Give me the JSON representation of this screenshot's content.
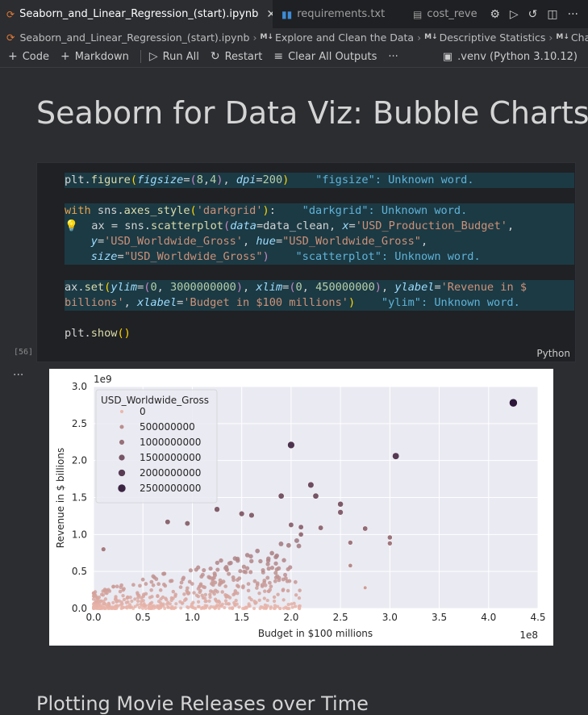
{
  "tabs": [
    {
      "label": "Seaborn_and_Linear_Regression_(start).ipynb",
      "active": true,
      "icon": "jupyter-icon"
    },
    {
      "label": "requirements.txt",
      "active": false,
      "icon": "pip-icon"
    },
    {
      "label": "cost_reve",
      "active": false,
      "icon": "file-icon"
    }
  ],
  "breadcrumb": {
    "file": "Seaborn_and_Linear_Regression_(start).ipynb",
    "items": [
      "Explore and Clean the Data",
      "Descriptive Statistics",
      "Challe"
    ],
    "md_badge": "M↓"
  },
  "toolbar": {
    "code": "Code",
    "markdown": "Markdown",
    "run_all": "Run All",
    "restart": "Restart",
    "clear": "Clear All Outputs",
    "more": "···",
    "kernel": ".venv (Python 3.10.12)"
  },
  "title": "Seaborn for Data Viz: Bubble Charts",
  "cell": {
    "exec_count": "[56]",
    "language": "Python",
    "diagnostics": {
      "figsize": "\"figsize\": Unknown word.",
      "darkgrid": "\"darkgrid\": Unknown word.",
      "scatterplot": "\"scatterplot\": Unknown word.",
      "ylim": "\"ylim\": Unknown word."
    }
  },
  "output": {
    "more": "···"
  },
  "next_heading": "Plotting Movie Releases over Time",
  "colors": {
    "accent": "#e37933",
    "plot_bg": "#eaeaf2",
    "cell_highlight": "#1c3a44"
  },
  "chart_data": {
    "type": "scatter",
    "xlabel": "Budget in $100 millions",
    "ylabel": "Revenue in $ billions",
    "x_exponent": "1e8",
    "y_exponent": "1e9",
    "xlim": [
      0,
      450000000
    ],
    "ylim": [
      0,
      3000000000
    ],
    "x_ticks": [
      "0.0",
      "0.5",
      "1.0",
      "1.5",
      "2.0",
      "2.5",
      "3.0",
      "3.5",
      "4.0",
      "4.5"
    ],
    "y_ticks": [
      "0.0",
      "0.5",
      "1.0",
      "1.5",
      "2.0",
      "2.5",
      "3.0"
    ],
    "grid": true,
    "legend_title": "USD_Worldwide_Gross",
    "legend_placement": "top-left",
    "legend_entries": [
      "0",
      "500000000",
      "1000000000",
      "1500000000",
      "2000000000",
      "2500000000"
    ],
    "highlight_points": [
      {
        "x": 425000000,
        "y": 2780000000
      },
      {
        "x": 200000000,
        "y": 2210000000
      },
      {
        "x": 306000000,
        "y": 2060000000
      },
      {
        "x": 220000000,
        "y": 1670000000
      },
      {
        "x": 190000000,
        "y": 1520000000
      },
      {
        "x": 225000000,
        "y": 1520000000
      },
      {
        "x": 250000000,
        "y": 1410000000
      },
      {
        "x": 250000000,
        "y": 1300000000
      },
      {
        "x": 125000000,
        "y": 1340000000
      },
      {
        "x": 150000000,
        "y": 1280000000
      },
      {
        "x": 160000000,
        "y": 1260000000
      },
      {
        "x": 275000000,
        "y": 1080000000
      },
      {
        "x": 300000000,
        "y": 960000000
      },
      {
        "x": 300000000,
        "y": 880000000
      },
      {
        "x": 260000000,
        "y": 890000000
      },
      {
        "x": 260000000,
        "y": 580000000
      },
      {
        "x": 275000000,
        "y": 280000000
      },
      {
        "x": 200000000,
        "y": 1130000000
      },
      {
        "x": 210000000,
        "y": 1100000000
      },
      {
        "x": 210000000,
        "y": 1000000000
      },
      {
        "x": 230000000,
        "y": 1090000000
      },
      {
        "x": 75000000,
        "y": 1170000000
      },
      {
        "x": 95000000,
        "y": 1150000000
      },
      {
        "x": 10000000,
        "y": 800000000
      }
    ],
    "cluster_note": "dense cloud of low budget/low gross films"
  }
}
